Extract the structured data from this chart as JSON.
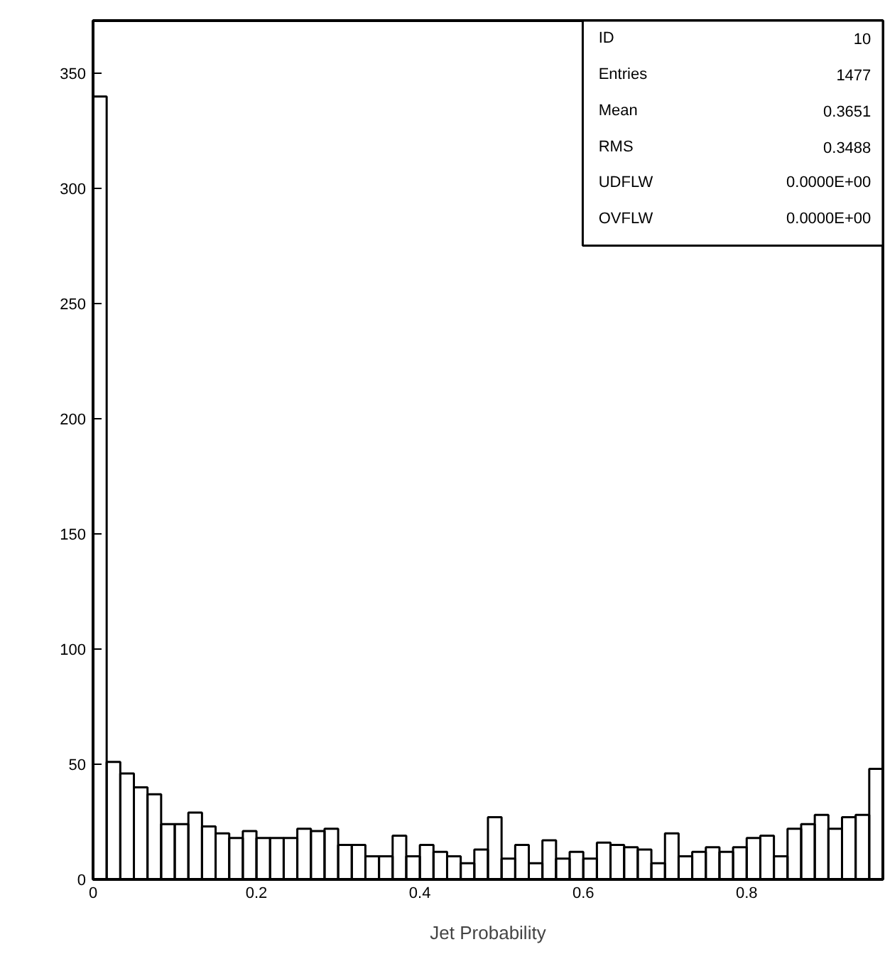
{
  "chart_data": {
    "type": "histogram",
    "xlabel": "Jet Probability",
    "bins": [
      0,
      0.016667,
      0.033333,
      0.05,
      0.066667,
      0.083333,
      0.1,
      0.116667,
      0.133333,
      0.15,
      0.166667,
      0.183333,
      0.2,
      0.216667,
      0.233333,
      0.25,
      0.266667,
      0.283333,
      0.3,
      0.316667,
      0.333333,
      0.35,
      0.366667,
      0.383333,
      0.4,
      0.416667,
      0.433333,
      0.45,
      0.466667,
      0.483333,
      0.5,
      0.516667,
      0.533333,
      0.55,
      0.566667,
      0.583333,
      0.6,
      0.616667,
      0.633333,
      0.65,
      0.666667,
      0.683333,
      0.7,
      0.716667,
      0.733333,
      0.75,
      0.766667,
      0.783333,
      0.8,
      0.816667,
      0.833333,
      0.85,
      0.866667,
      0.883333,
      0.9,
      0.916667,
      0.933333,
      0.95,
      0.966667
    ],
    "values": [
      340,
      51,
      46,
      40,
      37,
      24,
      24,
      29,
      23,
      20,
      18,
      21,
      18,
      18,
      18,
      22,
      21,
      22,
      15,
      15,
      10,
      10,
      19,
      10,
      15,
      12,
      10,
      7,
      13,
      27,
      9,
      15,
      7,
      17,
      9,
      12,
      9,
      16,
      15,
      14,
      13,
      7,
      20,
      10,
      12,
      14,
      12,
      14,
      18,
      19,
      10,
      22,
      24,
      28,
      22,
      27,
      28,
      48
    ],
    "color": "#000000",
    "xlim": [
      0,
      0.966667
    ],
    "ylim": [
      0,
      373
    ],
    "xticks": [
      0,
      0.2,
      0.4,
      0.6,
      0.8
    ],
    "yticks": [
      0,
      50,
      100,
      150,
      200,
      250,
      300,
      350
    ],
    "grid": false,
    "annotations": [
      "ID",
      "10",
      "Entries",
      "1477",
      "Mean",
      "0.3651",
      "RMS",
      "0.3488",
      "UDFLW",
      "0.0000E+00",
      "OVFLW",
      "0.0000E+00"
    ]
  }
}
